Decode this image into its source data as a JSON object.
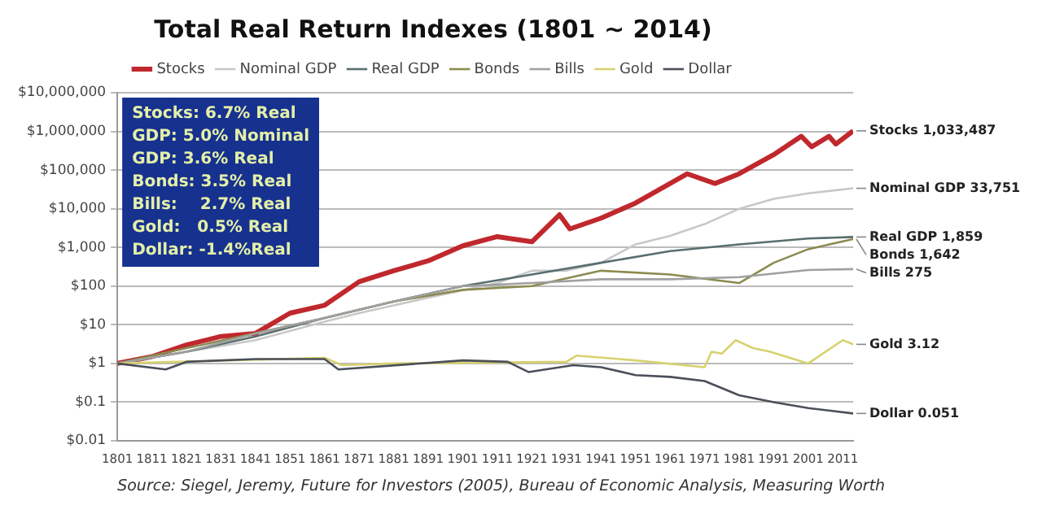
{
  "chart_data": {
    "type": "line",
    "title": "Total Real Return Indexes (1801 ~ 2014)",
    "xlim": [
      1801,
      2014
    ],
    "xticks": [
      1801,
      1811,
      1821,
      1831,
      1841,
      1851,
      1861,
      1871,
      1881,
      1891,
      1901,
      1911,
      1921,
      1931,
      1941,
      1951,
      1961,
      1971,
      1981,
      1991,
      2001,
      2011
    ],
    "ylim": [
      0.01,
      10000000
    ],
    "log": "y",
    "grid": "y",
    "legend": "top",
    "marker": "none",
    "line_style": "solid",
    "yticks": [
      {
        "value": 0.01,
        "label": "$0.01"
      },
      {
        "value": 0.1,
        "label": "$0.1"
      },
      {
        "value": 1,
        "label": "$1"
      },
      {
        "value": 10,
        "label": "$10"
      },
      {
        "value": 100,
        "label": "$100"
      },
      {
        "value": 1000,
        "label": "$1,000"
      },
      {
        "value": 10000,
        "label": "$10,000"
      },
      {
        "value": 100000,
        "label": "$100,000"
      },
      {
        "value": 1000000,
        "label": "$1,000,000"
      },
      {
        "value": 10000000,
        "label": "$10,000,000"
      }
    ],
    "series": [
      {
        "name": "Stocks",
        "color": "#c0282d",
        "x": [
          1801,
          1811,
          1821,
          1831,
          1841,
          1851,
          1861,
          1871,
          1881,
          1891,
          1901,
          1911,
          1921,
          1929,
          1932,
          1941,
          1951,
          1961,
          1966,
          1974,
          1981,
          1991,
          1999,
          2002,
          2007,
          2009,
          2014
        ],
        "values": [
          1,
          1.5,
          3,
          5,
          6,
          20,
          32,
          130,
          250,
          450,
          1100,
          1900,
          1400,
          7000,
          3000,
          5700,
          14000,
          45000,
          80000,
          45000,
          80000,
          250000,
          750000,
          400000,
          750000,
          470000,
          1033487
        ]
      },
      {
        "name": "Nominal GDP",
        "color": "#c8c8c8",
        "x": [
          1801,
          1821,
          1841,
          1861,
          1871,
          1891,
          1911,
          1921,
          1931,
          1941,
          1951,
          1961,
          1971,
          1981,
          1991,
          2001,
          2014
        ],
        "values": [
          1,
          2,
          4,
          12,
          20,
          50,
          120,
          250,
          250,
          400,
          1200,
          2000,
          4000,
          10000,
          18000,
          25000,
          33751
        ]
      },
      {
        "name": "Real GDP",
        "color": "#5a6e6e",
        "x": [
          1801,
          1821,
          1841,
          1861,
          1881,
          1901,
          1921,
          1941,
          1961,
          1981,
          2001,
          2014
        ],
        "values": [
          1,
          2,
          5,
          15,
          40,
          100,
          200,
          400,
          800,
          1200,
          1700,
          1859
        ]
      },
      {
        "name": "Bonds",
        "color": "#8c8a50",
        "x": [
          1801,
          1821,
          1841,
          1861,
          1881,
          1901,
          1921,
          1941,
          1961,
          1981,
          1991,
          2001,
          2014
        ],
        "values": [
          1,
          2.5,
          6,
          15,
          40,
          80,
          100,
          250,
          200,
          120,
          400,
          900,
          1642
        ]
      },
      {
        "name": "Bills",
        "color": "#a0a0a0",
        "x": [
          1801,
          1821,
          1841,
          1861,
          1881,
          1901,
          1921,
          1941,
          1961,
          1981,
          2001,
          2014
        ],
        "values": [
          1,
          2,
          6,
          15,
          40,
          100,
          120,
          150,
          150,
          170,
          260,
          275
        ]
      },
      {
        "name": "Gold",
        "color": "#d7d26e",
        "x": [
          1801,
          1861,
          1866,
          1881,
          1931,
          1934,
          1951,
          1971,
          1973,
          1976,
          1980,
          1985,
          1990,
          2001,
          2011,
          2014
        ],
        "values": [
          1,
          1.4,
          0.9,
          1,
          1.1,
          1.6,
          1.2,
          0.8,
          2,
          1.8,
          4,
          2.5,
          2,
          1,
          4,
          3.12
        ]
      },
      {
        "name": "Dollar",
        "color": "#4a4f5a",
        "x": [
          1801,
          1815,
          1821,
          1841,
          1861,
          1865,
          1901,
          1914,
          1920,
          1933,
          1941,
          1951,
          1961,
          1971,
          1981,
          1991,
          2001,
          2014
        ],
        "values": [
          1,
          0.7,
          1.1,
          1.3,
          1.3,
          0.7,
          1.2,
          1.1,
          0.6,
          0.9,
          0.8,
          0.5,
          0.45,
          0.35,
          0.15,
          0.1,
          0.07,
          0.051
        ]
      }
    ],
    "annotations": [
      "Stocks 1,033,487",
      "Nominal GDP 33,751",
      "Real GDP 1,859",
      "Bonds 1,642",
      "Bills 275",
      "Gold 3.12",
      "Dollar 0.051",
      "Stocks: 6.7% Real",
      "GDP: 5.0% Nominal",
      "GDP: 3.6% Real",
      "Bonds: 3.5% Real",
      "Bills:    2.7% Real",
      "Gold:   0.5% Real",
      "Dollar: -1.4%Real",
      "Source: Siegel, Jeremy, Future for Investors (2005), Bureau of Economic Analysis, Measuring Worth"
    ]
  }
}
